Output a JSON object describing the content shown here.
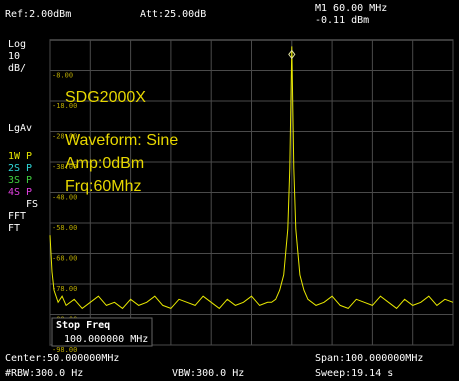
{
  "screen": {
    "header": {
      "ref": "Ref:2.00dBm",
      "att": "Att:25.00dB",
      "marker_freq": "M1 60.00 MHz",
      "marker_level": "-0.11 dBm"
    },
    "side_labels": [
      "Log",
      "10",
      "dB/",
      "LgAv",
      "1W P",
      "2S P",
      "3S P",
      "4S P",
      "FS",
      "FFT",
      "FT"
    ],
    "overlay": [
      "SDG2000X",
      "Waveform:  Sine",
      "Amp:0dBm",
      "Frq:60Mhz"
    ],
    "stop_freq": {
      "title": "Stop Freq",
      "value": "100.000000 MHz"
    },
    "footer": {
      "center": "Center:50.000000MHz",
      "span": "Span:100.000000MHz",
      "rbw": "#RBW:300.0 Hz",
      "vbw": "VBW:300.0 Hz",
      "sweep": "Sweep:19.14 s"
    }
  },
  "chart_data": {
    "type": "line",
    "color": "#e8e800",
    "xlim": [
      0,
      100
    ],
    "ylim": [
      -98,
      2
    ],
    "xticks": [
      0,
      10,
      20,
      30,
      40,
      50,
      60,
      70,
      80,
      90,
      100
    ],
    "yticks": [
      {
        "value": -8,
        "label": "-8.00"
      },
      {
        "value": -18,
        "label": "-18.00"
      },
      {
        "value": -28,
        "label": "-28.00"
      },
      {
        "value": -38,
        "label": "-38.00"
      },
      {
        "value": -48,
        "label": "-48.00"
      },
      {
        "value": -58,
        "label": "-58.00"
      },
      {
        "value": -68,
        "label": "-68.00"
      },
      {
        "value": -78,
        "label": "-78.00"
      },
      {
        "value": -88,
        "label": "-88.00"
      },
      {
        "value": -98,
        "label": "-98.00"
      }
    ],
    "x": [
      0,
      0.5,
      1,
      2,
      3,
      4,
      6,
      8,
      10,
      12,
      14,
      16,
      18,
      20,
      22,
      24,
      26,
      28,
      30,
      32,
      34,
      36,
      38,
      40,
      42,
      44,
      46,
      48,
      50,
      52,
      54,
      55,
      56,
      57,
      58,
      59,
      59.5,
      60,
      60.5,
      61,
      62,
      63,
      64,
      66,
      68,
      70,
      72,
      74,
      76,
      78,
      80,
      82,
      84,
      86,
      88,
      90,
      92,
      94,
      96,
      98,
      100
    ],
    "values": [
      -62,
      -74,
      -80,
      -84,
      -82,
      -85,
      -83,
      -86,
      -84,
      -82,
      -85,
      -84,
      -86,
      -83,
      -85,
      -84,
      -82,
      -85,
      -86,
      -83,
      -84,
      -85,
      -82,
      -84,
      -86,
      -83,
      -85,
      -84,
      -82,
      -85,
      -84,
      -84,
      -83,
      -80,
      -75,
      -60,
      -40,
      -0.11,
      -40,
      -60,
      -75,
      -80,
      -83,
      -85,
      -84,
      -82,
      -85,
      -86,
      -83,
      -84,
      -85,
      -82,
      -84,
      -86,
      -83,
      -85,
      -84,
      -82,
      -85,
      -83,
      -84
    ]
  }
}
